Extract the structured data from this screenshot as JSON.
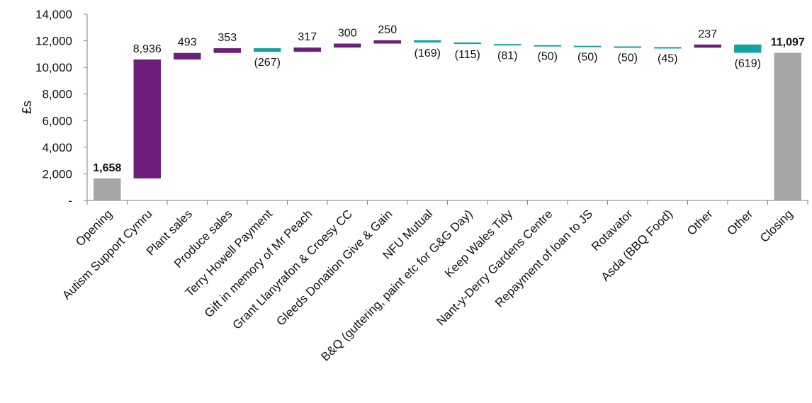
{
  "chart_data": {
    "type": "waterfall",
    "title": "",
    "xlabel": "",
    "ylabel": "£s",
    "ylim": [
      0,
      14000
    ],
    "yticks": [
      0,
      2000,
      4000,
      6000,
      8000,
      10000,
      12000,
      14000
    ],
    "ytick_labels": [
      "-",
      "2,000",
      "4,000",
      "6,000",
      "8,000",
      "10,000",
      "12,000",
      "14,000"
    ],
    "grid": false,
    "legend": "none",
    "colors": {
      "total": "#a6a6a6",
      "increase": "#6b1f7a",
      "decrease": "#13a3a3"
    },
    "categories": [
      "Opening",
      "Autism Support Cymru",
      "Plant sales",
      "Produce sales",
      "Terry Howell Payment",
      "Gift in memory of Mr Peach",
      "Grant Llanyrafon & Croesy CC",
      "Gleeds Donation Give & Gain",
      "NFU Mutual",
      "B&Q (guttering, paint etc for G&G Day)",
      "Keep Wales Tidy",
      "Nant-y-Derry Gardens Centre",
      "Repayment of loan to JS",
      "Rotavator",
      "Asda (BBQ Food)",
      "Other",
      "Other",
      "Closing"
    ],
    "values": [
      1658,
      8936,
      493,
      353,
      -267,
      317,
      300,
      250,
      -169,
      -115,
      -81,
      -50,
      -50,
      -50,
      -45,
      237,
      -619,
      11097
    ],
    "kinds": [
      "total",
      "increase",
      "increase",
      "increase",
      "decrease",
      "increase",
      "increase",
      "increase",
      "decrease",
      "decrease",
      "decrease",
      "decrease",
      "decrease",
      "decrease",
      "decrease",
      "increase",
      "decrease",
      "total"
    ],
    "value_labels": [
      "1,658",
      "8,936",
      "493",
      "353",
      "(267)",
      "317",
      "300",
      "250",
      "(169)",
      "(115)",
      "(81)",
      "(50)",
      "(50)",
      "(50)",
      "(45)",
      "237",
      "(619)",
      "11,097"
    ]
  }
}
